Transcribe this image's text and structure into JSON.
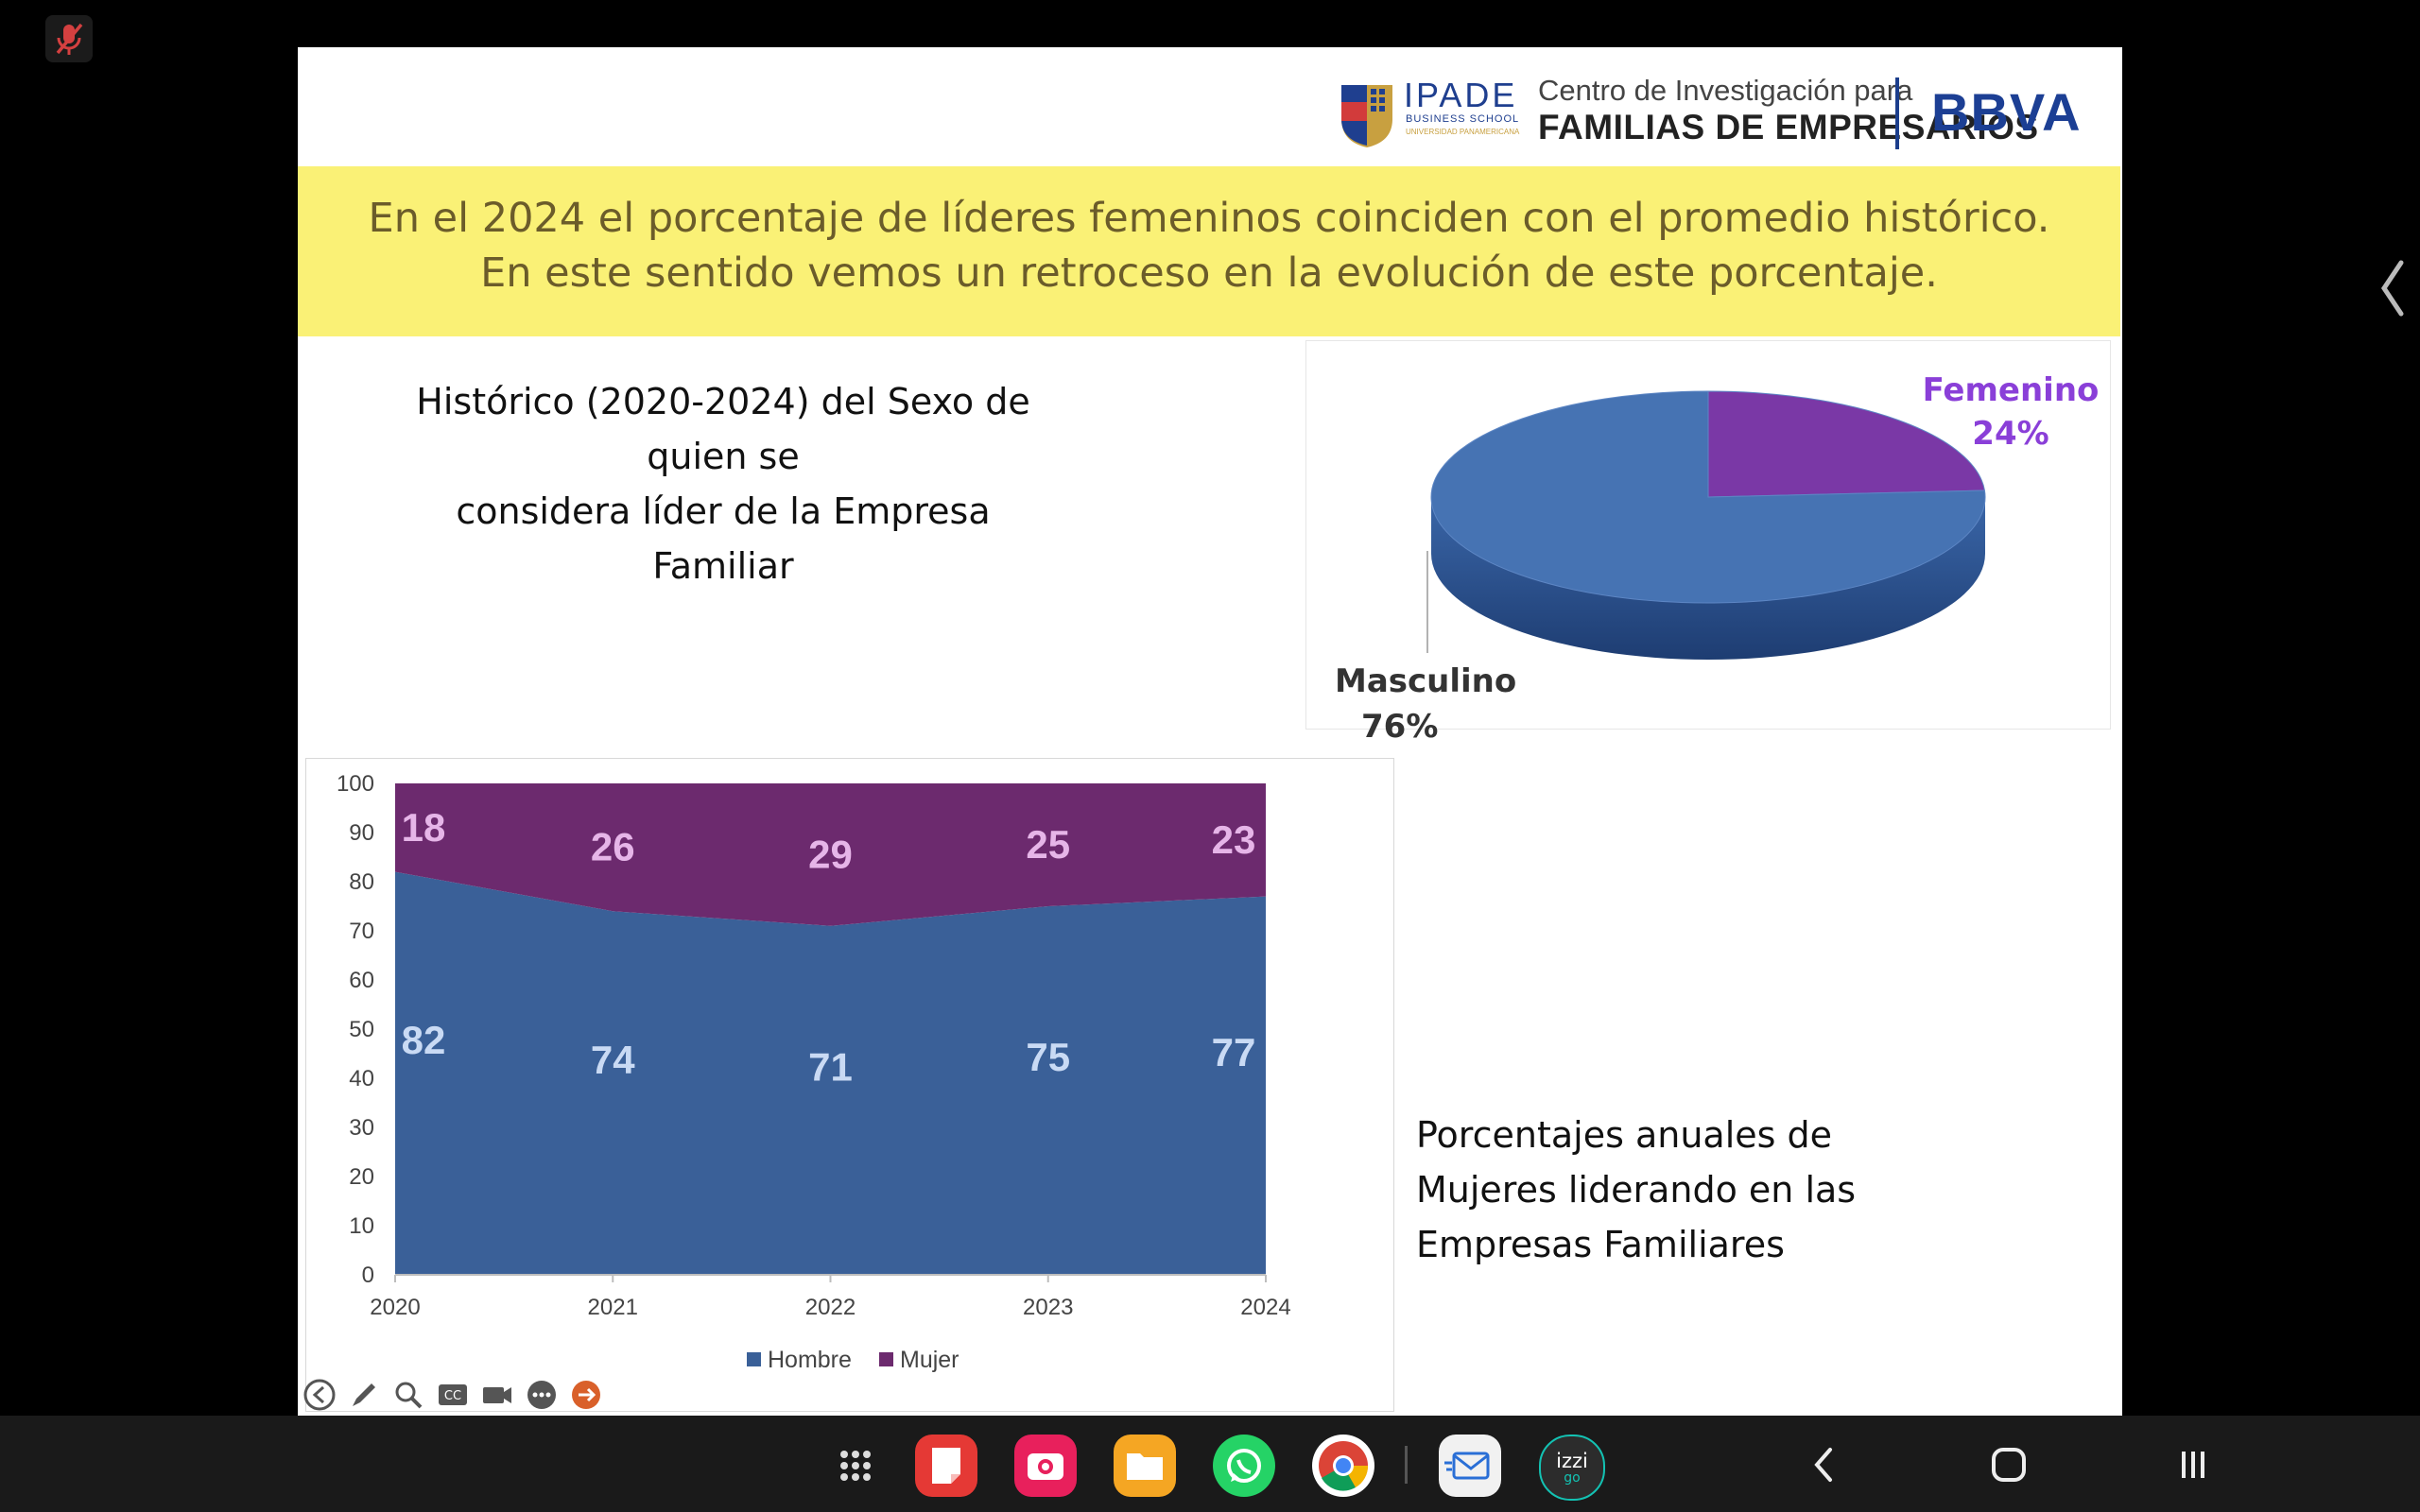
{
  "slide": {
    "logos": {
      "ipade_name": "IPADE",
      "ipade_sub1": "BUSINESS SCHOOL",
      "ipade_sub2": "UNIVERSIDAD PANAMERICANA",
      "centro_line1": "Centro de Investigación para",
      "centro_line2": "FAMILIAS DE EMPRESARIOS",
      "bbva": "BBVA"
    },
    "banner": {
      "line1": "En el 2024 el porcentaje de líderes femeninos coinciden con el promedio histórico.",
      "line2": "En este sentido vemos un retroceso en la evolución de este porcentaje.",
      "background": "#faf176"
    },
    "historic_title": {
      "line1": "Histórico (2020-2024) del Sexo de quien se",
      "line2": "considera  líder de la Empresa Familiar"
    },
    "pie": {
      "femenino_label": "Femenino",
      "femenino_pct": "24%",
      "masculino_label": "Masculino",
      "masculino_pct": "76%"
    },
    "porcentajes_text": {
      "line1": "Porcentajes anuales de",
      "line2": "Mujeres liderando en las",
      "line3": "Empresas Familiares"
    }
  },
  "chart_data": [
    {
      "type": "area",
      "stacked": true,
      "title": "",
      "categories": [
        "2020",
        "2021",
        "2022",
        "2023",
        "2024"
      ],
      "series": [
        {
          "name": "Hombre",
          "values": [
            82,
            74,
            71,
            75,
            77
          ],
          "color": "#3a6098"
        },
        {
          "name": "Mujer",
          "values": [
            18,
            26,
            29,
            25,
            23
          ],
          "color": "#6c2a6e"
        }
      ],
      "ylim": [
        0,
        100
      ],
      "yticks": [
        "0",
        "10",
        "20",
        "30",
        "40",
        "50",
        "60",
        "70",
        "80",
        "90",
        "100"
      ],
      "legend": "bottom",
      "label_colors": {
        "Hombre": "#c9daf4",
        "Mujer": "#e6b5e8"
      }
    },
    {
      "type": "pie",
      "style": "3d",
      "labels": [
        "Femenino",
        "Masculino"
      ],
      "values": [
        24,
        76
      ],
      "colors": [
        "#7a38a6",
        "#4673b3"
      ]
    }
  ],
  "toolbar": {
    "icons": [
      "back-icon",
      "pen-icon",
      "zoom-icon",
      "captions-icon",
      "camera-icon",
      "more-icon",
      "next-icon"
    ]
  },
  "taskbar": {
    "apps": [
      "app-drawer-icon",
      "notes-icon",
      "camera-app-icon",
      "files-icon",
      "whatsapp-icon",
      "chrome-icon",
      "mail-icon",
      "izzi-go-icon"
    ],
    "izzi_label": "izzi",
    "izzi_sub": "go"
  }
}
